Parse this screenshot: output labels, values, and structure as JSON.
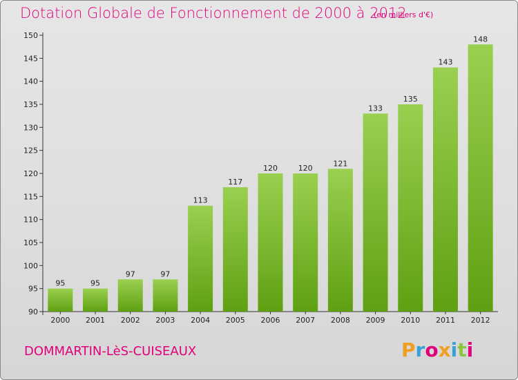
{
  "header": {
    "title": "Dotation Globale de Fonctionnement de 2000 à 2012",
    "subtitle": "(en milliers d'€)"
  },
  "footer": {
    "commune": "DOMMARTIN-LèS-CUISEAUX",
    "logo": "Proxiti"
  },
  "colors": {
    "accent": "#e0007a",
    "bar_top": "#9ad050",
    "bar_bottom": "#5fa012",
    "logo_letters": [
      "#f0a020",
      "#3aa0d8",
      "#e0007a",
      "#f0a020",
      "#3aa0d8",
      "#8cc63f",
      "#e0007a"
    ]
  },
  "chart_data": {
    "type": "bar",
    "title": "Dotation Globale de Fonctionnement de 2000 à 2012",
    "categories": [
      "2000",
      "2001",
      "2002",
      "2003",
      "2004",
      "2005",
      "2006",
      "2007",
      "2008",
      "2009",
      "2010",
      "2011",
      "2012"
    ],
    "values": [
      95,
      95,
      97,
      97,
      113,
      117,
      120,
      120,
      121,
      133,
      135,
      143,
      148
    ],
    "ylim": [
      90,
      150
    ],
    "yticks": [
      90,
      95,
      100,
      105,
      110,
      115,
      120,
      125,
      130,
      135,
      140,
      145,
      150
    ],
    "grid": false,
    "xlabel": "",
    "ylabel": ""
  }
}
